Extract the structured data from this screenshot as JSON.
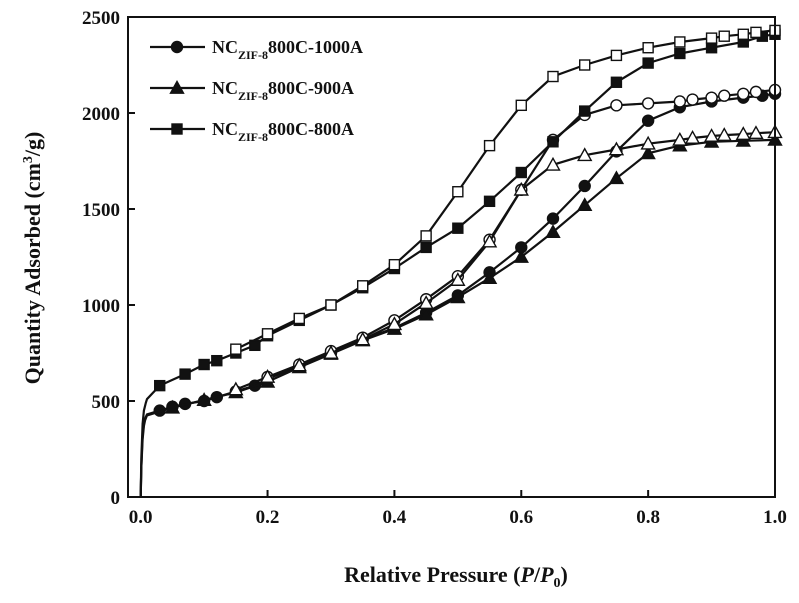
{
  "chart_data": {
    "type": "line",
    "title": "",
    "xlabel": {
      "prefix": "Relative Pressure (",
      "italic1": "P",
      "slash": "/",
      "italic2": "P",
      "sub": "0",
      "suffix": ")"
    },
    "ylabel": {
      "main": "Quantity Adsorbed (cm",
      "sup": "3",
      "suffix": "/g)"
    },
    "xlim": [
      -0.02,
      1.0
    ],
    "ylim": [
      0,
      2500
    ],
    "xticks": [
      "0.0",
      "0.2",
      "0.4",
      "0.6",
      "0.8",
      "1.0"
    ],
    "xtick_values": [
      0.0,
      0.2,
      0.4,
      0.6,
      0.8,
      1.0
    ],
    "yticks": [
      "0",
      "500",
      "1000",
      "1500",
      "2000",
      "2500"
    ],
    "ytick_values": [
      0,
      500,
      1000,
      1500,
      2000,
      2500
    ],
    "legend_position": "top-left",
    "series": [
      {
        "name": "NC_ZIF-8_800C-1000A",
        "legend_main": "NC",
        "legend_sub": "ZIF-8",
        "legend_rest": "800C-1000A",
        "marker": "circle",
        "adsorption": [
          [
            0.0,
            0
          ],
          [
            0.001,
            150
          ],
          [
            0.002,
            250
          ],
          [
            0.003,
            320
          ],
          [
            0.005,
            380
          ],
          [
            0.007,
            410
          ],
          [
            0.01,
            430
          ],
          [
            0.03,
            450
          ],
          [
            0.05,
            470
          ],
          [
            0.07,
            485
          ],
          [
            0.1,
            500
          ],
          [
            0.12,
            520
          ],
          [
            0.15,
            550
          ],
          [
            0.18,
            580
          ],
          [
            0.2,
            615
          ],
          [
            0.25,
            680
          ],
          [
            0.3,
            750
          ],
          [
            0.35,
            820
          ],
          [
            0.4,
            880
          ],
          [
            0.45,
            960
          ],
          [
            0.5,
            1050
          ],
          [
            0.55,
            1170
          ],
          [
            0.6,
            1300
          ],
          [
            0.65,
            1450
          ],
          [
            0.7,
            1620
          ],
          [
            0.75,
            1800
          ],
          [
            0.8,
            1960
          ],
          [
            0.85,
            2030
          ],
          [
            0.9,
            2060
          ],
          [
            0.95,
            2080
          ],
          [
            0.98,
            2090
          ],
          [
            1.0,
            2100
          ]
        ],
        "desorption": [
          [
            1.0,
            2120
          ],
          [
            0.97,
            2110
          ],
          [
            0.95,
            2100
          ],
          [
            0.92,
            2090
          ],
          [
            0.9,
            2080
          ],
          [
            0.87,
            2070
          ],
          [
            0.85,
            2060
          ],
          [
            0.8,
            2050
          ],
          [
            0.75,
            2040
          ],
          [
            0.7,
            1990
          ],
          [
            0.65,
            1860
          ],
          [
            0.6,
            1600
          ],
          [
            0.55,
            1340
          ],
          [
            0.5,
            1150
          ],
          [
            0.45,
            1030
          ],
          [
            0.4,
            920
          ],
          [
            0.35,
            830
          ],
          [
            0.3,
            760
          ],
          [
            0.25,
            690
          ],
          [
            0.2,
            625
          ]
        ]
      },
      {
        "name": "NC_ZIF-8_800C-900A",
        "legend_main": "NC",
        "legend_sub": "ZIF-8",
        "legend_rest": "800C-900A",
        "marker": "triangle",
        "adsorption": [
          [
            0.0,
            0
          ],
          [
            0.001,
            150
          ],
          [
            0.003,
            300
          ],
          [
            0.005,
            370
          ],
          [
            0.007,
            400
          ],
          [
            0.01,
            425
          ],
          [
            0.05,
            465
          ],
          [
            0.1,
            505
          ],
          [
            0.15,
            545
          ],
          [
            0.2,
            600
          ],
          [
            0.25,
            675
          ],
          [
            0.3,
            745
          ],
          [
            0.35,
            815
          ],
          [
            0.4,
            875
          ],
          [
            0.45,
            950
          ],
          [
            0.5,
            1040
          ],
          [
            0.55,
            1140
          ],
          [
            0.6,
            1250
          ],
          [
            0.65,
            1380
          ],
          [
            0.7,
            1520
          ],
          [
            0.75,
            1660
          ],
          [
            0.8,
            1790
          ],
          [
            0.85,
            1830
          ],
          [
            0.9,
            1850
          ],
          [
            0.95,
            1855
          ],
          [
            1.0,
            1860
          ]
        ],
        "desorption": [
          [
            1.0,
            1900
          ],
          [
            0.97,
            1895
          ],
          [
            0.95,
            1890
          ],
          [
            0.92,
            1885
          ],
          [
            0.9,
            1880
          ],
          [
            0.87,
            1870
          ],
          [
            0.85,
            1860
          ],
          [
            0.8,
            1840
          ],
          [
            0.75,
            1810
          ],
          [
            0.7,
            1780
          ],
          [
            0.65,
            1730
          ],
          [
            0.6,
            1600
          ],
          [
            0.55,
            1330
          ],
          [
            0.5,
            1130
          ],
          [
            0.45,
            1010
          ],
          [
            0.4,
            900
          ],
          [
            0.35,
            820
          ],
          [
            0.3,
            750
          ],
          [
            0.25,
            685
          ],
          [
            0.2,
            625
          ],
          [
            0.15,
            560
          ]
        ]
      },
      {
        "name": "NC_ZIF-8_800C-800A",
        "legend_main": "NC",
        "legend_sub": "ZIF-8",
        "legend_rest": "800C-800A",
        "marker": "square",
        "adsorption": [
          [
            0.0,
            0
          ],
          [
            0.001,
            200
          ],
          [
            0.003,
            380
          ],
          [
            0.005,
            450
          ],
          [
            0.008,
            490
          ],
          [
            0.01,
            510
          ],
          [
            0.03,
            580
          ],
          [
            0.07,
            640
          ],
          [
            0.1,
            690
          ],
          [
            0.12,
            710
          ],
          [
            0.15,
            750
          ],
          [
            0.18,
            790
          ],
          [
            0.2,
            840
          ],
          [
            0.25,
            920
          ],
          [
            0.3,
            1000
          ],
          [
            0.35,
            1090
          ],
          [
            0.4,
            1190
          ],
          [
            0.45,
            1300
          ],
          [
            0.5,
            1400
          ],
          [
            0.55,
            1540
          ],
          [
            0.6,
            1690
          ],
          [
            0.65,
            1850
          ],
          [
            0.7,
            2010
          ],
          [
            0.75,
            2160
          ],
          [
            0.8,
            2260
          ],
          [
            0.85,
            2310
          ],
          [
            0.9,
            2340
          ],
          [
            0.95,
            2370
          ],
          [
            0.98,
            2400
          ],
          [
            1.0,
            2410
          ]
        ],
        "desorption": [
          [
            1.0,
            2430
          ],
          [
            0.97,
            2420
          ],
          [
            0.95,
            2410
          ],
          [
            0.92,
            2400
          ],
          [
            0.9,
            2390
          ],
          [
            0.85,
            2370
          ],
          [
            0.8,
            2340
          ],
          [
            0.75,
            2300
          ],
          [
            0.7,
            2250
          ],
          [
            0.65,
            2190
          ],
          [
            0.6,
            2040
          ],
          [
            0.55,
            1830
          ],
          [
            0.5,
            1590
          ],
          [
            0.45,
            1360
          ],
          [
            0.4,
            1210
          ],
          [
            0.35,
            1100
          ],
          [
            0.3,
            1000
          ],
          [
            0.25,
            930
          ],
          [
            0.2,
            850
          ],
          [
            0.15,
            770
          ]
        ]
      }
    ]
  }
}
